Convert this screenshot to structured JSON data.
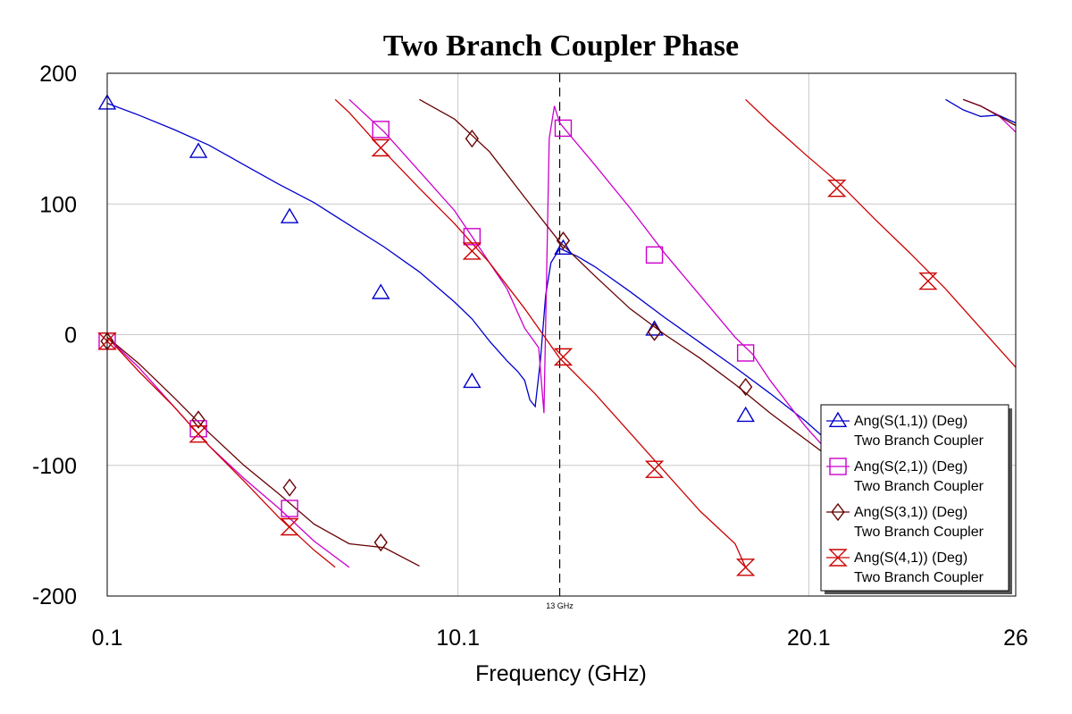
{
  "chart_data": {
    "type": "line",
    "title": "Two Branch Coupler Phase",
    "xlabel": "Frequency (GHz)",
    "ylabel": "",
    "xlim": [
      0.1,
      26
    ],
    "ylim": [
      -200,
      200
    ],
    "x_ticks": [
      {
        "value": 0.1,
        "label": "0.1"
      },
      {
        "value": 10.1,
        "label": "10.1"
      },
      {
        "value": 20.1,
        "label": "20.1"
      },
      {
        "value": 26,
        "label": "26"
      }
    ],
    "y_ticks": [
      {
        "value": 200,
        "label": "200"
      },
      {
        "value": 100,
        "label": "100"
      },
      {
        "value": 0,
        "label": "0"
      },
      {
        "value": -100,
        "label": "-100"
      },
      {
        "value": -200,
        "label": "-200"
      }
    ],
    "grid": true,
    "marker_line": {
      "x": 13,
      "label": "13 GHz"
    },
    "legend_position": "bottom-right",
    "series": [
      {
        "name": "Ang(S(1,1)) (Deg)",
        "sub": "Two Branch Coupler",
        "color": "#0000cc",
        "marker": "triangle-up",
        "segments": [
          [
            [
              0.1,
              177
            ],
            [
              1.0,
              168
            ],
            [
              2.0,
              157
            ],
            [
              3.0,
              145
            ],
            [
              4.0,
              130
            ],
            [
              5.0,
              115
            ],
            [
              6.0,
              101
            ],
            [
              7.0,
              84
            ],
            [
              8.0,
              67
            ],
            [
              9.0,
              48
            ],
            [
              10.0,
              25
            ],
            [
              10.5,
              12
            ],
            [
              11.0,
              -5
            ],
            [
              11.5,
              -20
            ],
            [
              11.8,
              -28
            ],
            [
              12.0,
              -35
            ],
            [
              12.15,
              -50
            ],
            [
              12.3,
              -55
            ],
            [
              12.45,
              -20
            ],
            [
              12.6,
              30
            ],
            [
              12.75,
              55
            ],
            [
              13.0,
              66
            ],
            [
              13.5,
              60
            ],
            [
              14.0,
              52
            ],
            [
              15.0,
              33
            ],
            [
              16.0,
              13
            ],
            [
              17.0,
              -6
            ],
            [
              18.0,
              -25
            ],
            [
              19.0,
              -45
            ],
            [
              20.0,
              -66
            ],
            [
              21.0,
              -90
            ],
            [
              22.0,
              -110
            ],
            [
              23.0,
              -140
            ],
            [
              23.8,
              -160
            ],
            [
              24.0,
              -165
            ]
          ],
          [
            [
              24.0,
              180
            ],
            [
              24.5,
              172
            ],
            [
              25.0,
              167
            ],
            [
              25.5,
              168
            ],
            [
              26.0,
              162
            ]
          ]
        ],
        "markers": [
          [
            0.1,
            177
          ],
          [
            2.7,
            140
          ],
          [
            5.3,
            90
          ],
          [
            7.9,
            32
          ],
          [
            10.5,
            -36
          ],
          [
            13.1,
            66
          ],
          [
            15.7,
            4
          ],
          [
            18.3,
            -62
          ]
        ]
      },
      {
        "name": "Ang(S(2,1)) (Deg)",
        "sub": "Two Branch Coupler",
        "color": "#cc00cc",
        "marker": "square",
        "segments": [
          [
            [
              0.1,
              -2
            ],
            [
              1.0,
              -25
            ],
            [
              2.0,
              -55
            ],
            [
              3.0,
              -85
            ],
            [
              4.0,
              -110
            ],
            [
              5.0,
              -133
            ],
            [
              6.0,
              -158
            ],
            [
              7.0,
              -178
            ]
          ],
          [
            [
              7.0,
              180
            ],
            [
              8.0,
              155
            ],
            [
              9.0,
              125
            ],
            [
              10.0,
              95
            ],
            [
              10.5,
              75
            ],
            [
              11.0,
              55
            ],
            [
              11.5,
              35
            ],
            [
              12.0,
              5
            ],
            [
              12.4,
              -10
            ],
            [
              12.55,
              -60
            ],
            [
              12.7,
              150
            ],
            [
              12.85,
              175
            ],
            [
              13.0,
              162
            ],
            [
              14.0,
              130
            ],
            [
              15.0,
              97
            ],
            [
              16.0,
              62
            ],
            [
              17.0,
              30
            ],
            [
              18.0,
              -2
            ],
            [
              18.5,
              -15
            ],
            [
              19.0,
              -35
            ],
            [
              20.0,
              -70
            ],
            [
              21.0,
              -100
            ],
            [
              22.0,
              -130
            ],
            [
              23.0,
              -160
            ],
            [
              24.5,
              -180
            ]
          ],
          [
            [
              24.5,
              180
            ],
            [
              25.0,
              175
            ],
            [
              25.5,
              168
            ],
            [
              26.0,
              155
            ]
          ]
        ],
        "markers": [
          [
            0.1,
            -5
          ],
          [
            2.7,
            -72
          ],
          [
            5.3,
            -133
          ],
          [
            7.9,
            157
          ],
          [
            10.5,
            75
          ],
          [
            13.1,
            158
          ],
          [
            15.7,
            61
          ],
          [
            18.3,
            -14
          ]
        ]
      },
      {
        "name": "Ang(S(3,1)) (Deg)",
        "sub": "Two Branch Coupler",
        "color": "#660000",
        "marker": "diamond",
        "segments": [
          [
            [
              0.1,
              -2
            ],
            [
              1.0,
              -22
            ],
            [
              2.0,
              -48
            ],
            [
              3.0,
              -75
            ],
            [
              4.0,
              -100
            ],
            [
              5.0,
              -122
            ],
            [
              6.0,
              -145
            ],
            [
              7.0,
              -160
            ],
            [
              8.0,
              -163
            ],
            [
              9.0,
              -177
            ]
          ],
          [
            [
              9.0,
              180
            ],
            [
              10.0,
              165
            ],
            [
              11.0,
              140
            ],
            [
              12.0,
              105
            ],
            [
              13.0,
              71
            ],
            [
              14.0,
              45
            ],
            [
              15.0,
              20
            ],
            [
              16.0,
              0
            ],
            [
              17.0,
              -18
            ],
            [
              18.0,
              -38
            ],
            [
              19.0,
              -60
            ],
            [
              20.0,
              -80
            ],
            [
              21.0,
              -100
            ],
            [
              22.0,
              -125
            ],
            [
              23.0,
              -150
            ],
            [
              24.5,
              -180
            ]
          ],
          [
            [
              24.5,
              180
            ],
            [
              25.0,
              175
            ],
            [
              26.0,
              160
            ]
          ]
        ],
        "markers": [
          [
            0.1,
            -5
          ],
          [
            2.7,
            -65
          ],
          [
            5.3,
            -117
          ],
          [
            7.9,
            -159
          ],
          [
            10.5,
            150
          ],
          [
            13.1,
            72
          ],
          [
            15.7,
            2
          ],
          [
            18.3,
            -40
          ]
        ]
      },
      {
        "name": "Ang(S(4,1)) (Deg)",
        "sub": "Two Branch Coupler",
        "color": "#cc0000",
        "marker": "hourglass",
        "segments": [
          [
            [
              0.1,
              -2
            ],
            [
              1.0,
              -28
            ],
            [
              2.0,
              -55
            ],
            [
              3.0,
              -85
            ],
            [
              4.0,
              -112
            ],
            [
              5.0,
              -140
            ],
            [
              6.0,
              -165
            ],
            [
              6.6,
              -178
            ]
          ],
          [
            [
              6.6,
              180
            ],
            [
              7.0,
              170
            ],
            [
              8.0,
              140
            ],
            [
              9.0,
              112
            ],
            [
              10.0,
              85
            ],
            [
              11.0,
              55
            ],
            [
              12.0,
              20
            ],
            [
              13.0,
              -18
            ],
            [
              14.0,
              -45
            ],
            [
              15.0,
              -75
            ],
            [
              16.0,
              -105
            ],
            [
              17.0,
              -135
            ],
            [
              18.0,
              -160
            ],
            [
              18.3,
              -178
            ]
          ],
          [
            [
              18.3,
              180
            ],
            [
              19.0,
              162
            ],
            [
              20.0,
              138
            ],
            [
              21.0,
              115
            ],
            [
              22.0,
              88
            ],
            [
              23.0,
              62
            ],
            [
              24.0,
              35
            ],
            [
              25.0,
              5
            ],
            [
              26.0,
              -25
            ]
          ]
        ],
        "markers": [
          [
            0.1,
            -5
          ],
          [
            2.7,
            -76
          ],
          [
            5.3,
            -147
          ],
          [
            7.9,
            143
          ],
          [
            10.5,
            64
          ],
          [
            13.1,
            -17
          ],
          [
            15.7,
            -103
          ],
          [
            18.3,
            -178
          ],
          [
            20.9,
            112
          ],
          [
            23.5,
            41
          ]
        ]
      }
    ]
  }
}
